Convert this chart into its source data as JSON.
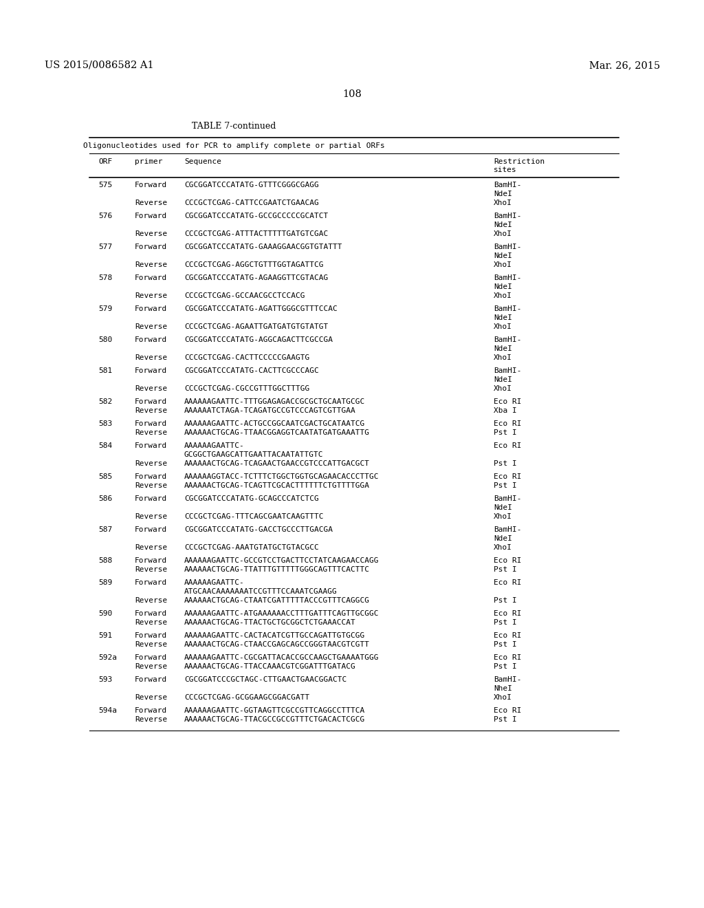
{
  "page_header_left": "US 2015/0086582 A1",
  "page_header_right": "Mar. 26, 2015",
  "page_number": "108",
  "table_title": "TABLE 7-continued",
  "table_subtitle": "Oligonucleotides used for PCR to amplify complete or partial ORFs",
  "rows": [
    [
      "575",
      "Forward",
      "CGCGGATCCCATATG-GTTTCGGGCGAGG",
      "BamHI-\nNdeI"
    ],
    [
      "",
      "Reverse",
      "CCCGCTCGAG-CATTCCGAATCTGAACAG",
      "XhoI"
    ],
    [
      "576",
      "Forward",
      "CGCGGATCCCATATG-GCCGCCCCCGCATCT",
      "BamHI-\nNdeI"
    ],
    [
      "",
      "Reverse",
      "CCCGCTCGAG-ATTTACTTTTTGATGTCGAC",
      "XhoI"
    ],
    [
      "577",
      "Forward",
      "CGCGGATCCCATATG-GAAAGGAACGGTGTATTT",
      "BamHI-\nNdeI"
    ],
    [
      "",
      "Reverse",
      "CCCGCTCGAG-AGGCTGTTTGGTAGATTCG",
      "XhoI"
    ],
    [
      "578",
      "Forward",
      "CGCGGATCCCATATG-AGAAGGTTCGTACAG",
      "BamHI-\nNdeI"
    ],
    [
      "",
      "Reverse",
      "CCCGCTCGAG-GCCAACGCCTCCACG",
      "XhoI"
    ],
    [
      "579",
      "Forward",
      "CGCGGATCCCATATG-AGATTGGGCGTTTCCAC",
      "BamHI-\nNdeI"
    ],
    [
      "",
      "Reverse",
      "CCCGCTCGAG-AGAATTGATGATGTGTATGT",
      "XhoI"
    ],
    [
      "580",
      "Forward",
      "CGCGGATCCCATATG-AGGCAGACTTCGCCGA",
      "BamHI-\nNdeI"
    ],
    [
      "",
      "Reverse",
      "CCCGCTCGAG-CACTTCCCCCGAAGTG",
      "XhoI"
    ],
    [
      "581",
      "Forward",
      "CGCGGATCCCATATG-CACTTCGCCCAGC",
      "BamHI-\nNdeI"
    ],
    [
      "",
      "Reverse",
      "CCCGCTCGAG-CGCCGTTTGGCTTTGG",
      "XhoI"
    ],
    [
      "582",
      "Forward",
      "AAAAAAGAATTC-TTTGGAGAGACCGCGCTGCAATGCGC",
      "Eco RI"
    ],
    [
      "",
      "Reverse",
      "AAAAAATCTAGA-TCAGATGCCGTCCCAGTCGTTGAA",
      "Xba I"
    ],
    [
      "583",
      "Forward",
      "AAAAAAGAATTC-ACTGCCGGCAATCGACTGCATAATCG",
      "Eco RI"
    ],
    [
      "",
      "Reverse",
      "AAAAAACTGCAG-TTAACGGAGGTCAATATGATGAAATTG",
      "Pst I"
    ],
    [
      "584",
      "Forward",
      "AAAAAAGAATTC-\nGCGGCTGAAGCATTGAATTACAATATTGTC",
      "Eco RI"
    ],
    [
      "",
      "Reverse",
      "AAAAAACTGCAG-TCAGAACTGAACCGTCCCATTGACGCT",
      "Pst I"
    ],
    [
      "585",
      "Forward",
      "AAAAAAGGTACC-TCTTTCTGGCTGGTGCAGAACACCCTTGC",
      "Eco RI"
    ],
    [
      "",
      "Reverse",
      "AAAAAACTGCAG-TCAGTTCGCACTTTTTTCTGTTTTGGA",
      "Pst I"
    ],
    [
      "586",
      "Forward",
      "CGCGGATCCCATATG-GCAGCCCATCTCG",
      "BamHI-\nNdeI"
    ],
    [
      "",
      "Reverse",
      "CCCGCTCGAG-TTTCAGCGAATCAAGTTTC",
      "XhoI"
    ],
    [
      "587",
      "Forward",
      "CGCGGATCCCATATG-GACCTGCCCTTGACGA",
      "BamHI-\nNdeI"
    ],
    [
      "",
      "Reverse",
      "CCCGCTCGAG-AAATGTATGCTGTACGCC",
      "XhoI"
    ],
    [
      "588",
      "Forward",
      "AAAAAAGAATTC-GCCGTCCTGACTTCCTATCAAGAACCAGG",
      "Eco RI"
    ],
    [
      "",
      "Reverse",
      "AAAAAACTGCAG-TTATTTGTTTTTGGGCAGTTTCACTTC",
      "Pst I"
    ],
    [
      "589",
      "Forward",
      "AAAAAAGAATTC-\nATGCAACAAAAAAATCCGTTTCCAAATCGAAGG",
      "Eco RI"
    ],
    [
      "",
      "Reverse",
      "AAAAAACTGCAG-CTAATCGATTTTTACCCGTTTCAGGCG",
      "Pst I"
    ],
    [
      "590",
      "Forward",
      "AAAAAAGAATTC-ATGAAAAAACCTTTGATTTCAGTTGCGGC",
      "Eco RI"
    ],
    [
      "",
      "Reverse",
      "AAAAAACTGCAG-TTACTGCTGCGGCTCTGAAACCAT",
      "Pst I"
    ],
    [
      "591",
      "Forward",
      "AAAAAAGAATTC-CACTACATCGTTGCCAGATTGTGCGG",
      "Eco RI"
    ],
    [
      "",
      "Reverse",
      "AAAAAACTGCAG-CTAACCGAGCAGCCGGGTAACGTCGTT",
      "Pst I"
    ],
    [
      "592a",
      "Forward",
      "AAAAAAGAATTC-CGCGATTACACCGCCAAGCTGAAAATGGG",
      "Eco RI"
    ],
    [
      "",
      "Reverse",
      "AAAAAACTGCAG-TTACCAAACGTCGGATTTGATACG",
      "Pst I"
    ],
    [
      "593",
      "Forward",
      "CGCGGATCCCGCTAGC-CTTGAACTGAACGGACTC",
      "BamHI-\nNheI"
    ],
    [
      "",
      "Reverse",
      "CCCGCTCGAG-GCGGAAGCGGACGATT",
      "XhoI"
    ],
    [
      "594a",
      "Forward",
      "AAAAAAGAATTC-GGTAAGTTCGCCGTTCAGGCCTTTCA",
      "Eco RI"
    ],
    [
      "",
      "Reverse",
      "AAAAAACTGCAG-TTACGCCGCCGTTTCTGACACTCGCG",
      "Pst I"
    ]
  ],
  "background_color": "#ffffff",
  "text_color": "#000000"
}
